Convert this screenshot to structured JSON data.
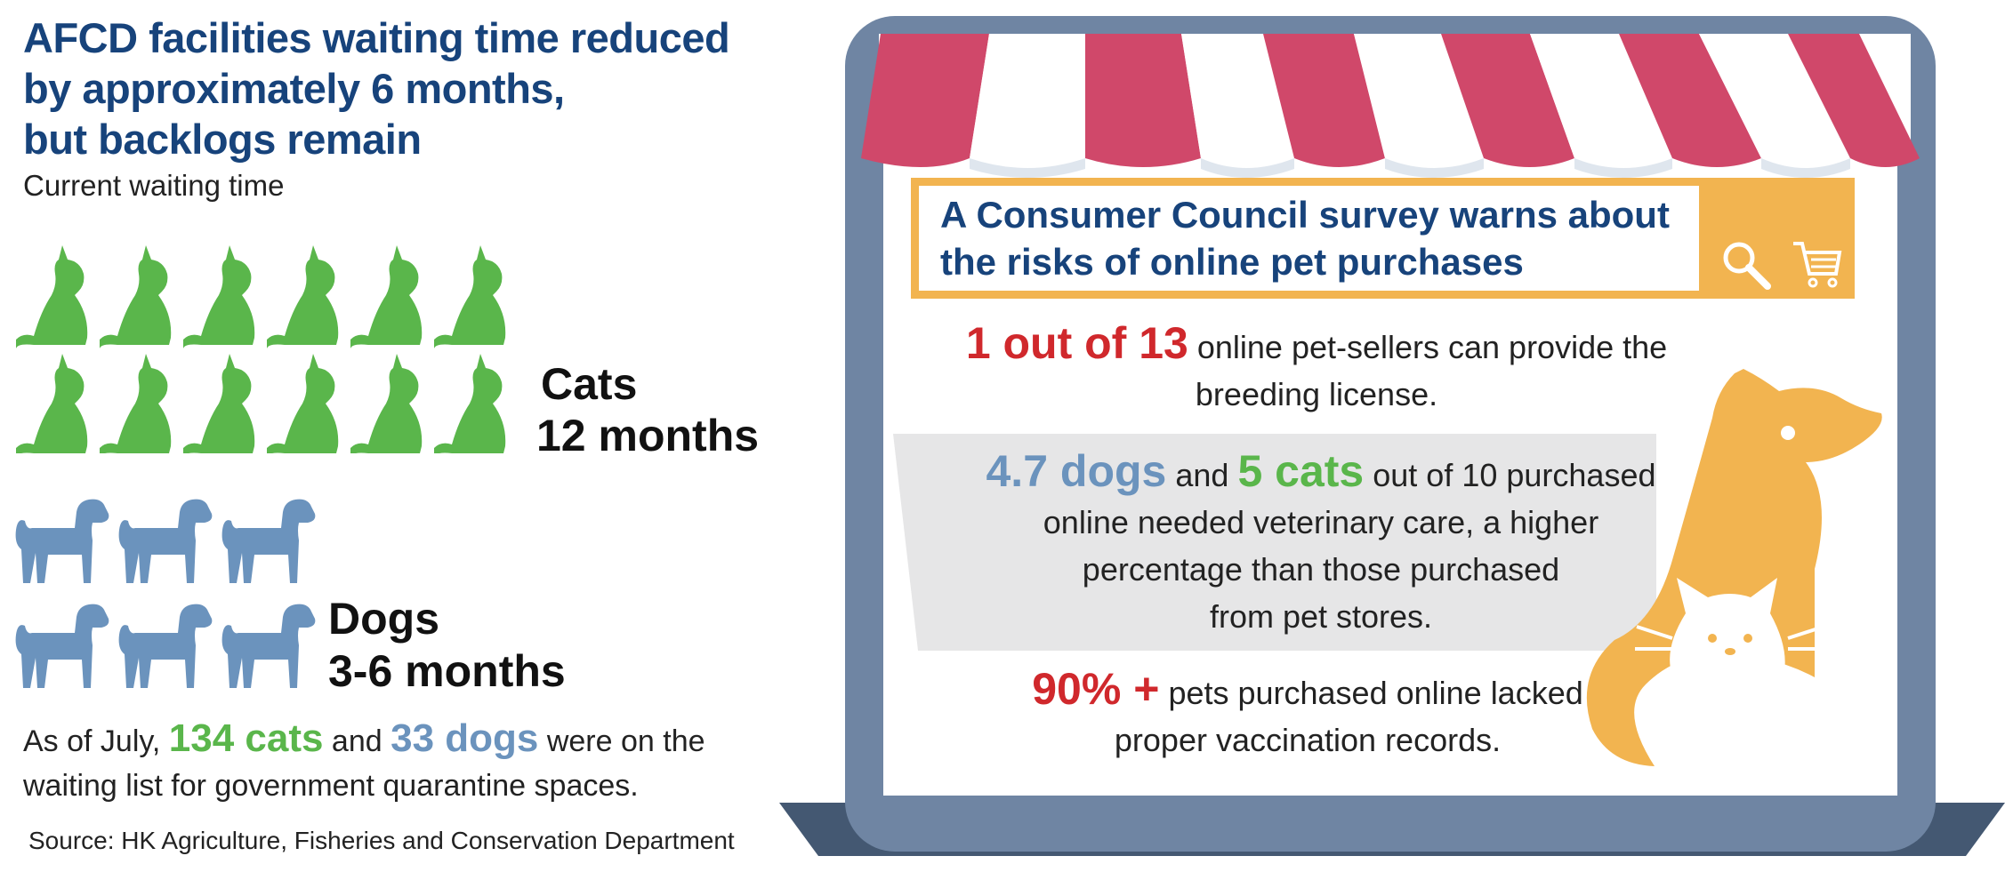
{
  "header": {
    "title_line1": "AFCD facilities waiting time reduced",
    "title_line2": "by approximately 6 months,",
    "title_line3": "but backlogs remain",
    "subtitle": "Current waiting time"
  },
  "cats": {
    "label": "Cats",
    "duration": "12 months",
    "icon": "cat-silhouette-icon",
    "icon_count": 12,
    "color": "#5ab64b"
  },
  "dogs": {
    "label": "Dogs",
    "duration": "3-6 months",
    "icon": "dog-silhouette-icon",
    "icon_count": 6,
    "color": "#6b93bd"
  },
  "waitlist": {
    "prefix": "As of July,",
    "cats_count": "134 cats",
    "connector": "and",
    "dogs_count": "33 dogs",
    "suffix_line1": "were on the",
    "suffix_line2": "waiting list for government quarantine spaces."
  },
  "source": "Source: HK Agriculture, Fisheries and Conservation Department",
  "survey": {
    "title_line1": "A Consumer Council survey warns about",
    "title_line2": "the risks of online pet purchases",
    "icons": [
      "magnifying-glass-icon",
      "shopping-cart-icon"
    ]
  },
  "facts": {
    "fact1_highlight": "1 out of 13",
    "fact1_line1": "online pet-sellers can provide the",
    "fact1_line2": "breeding license.",
    "fact2_dogs": "4.7 dogs",
    "fact2_and": "and",
    "fact2_cats": "5 cats",
    "fact2_line1": "out of 10 purchased",
    "fact2_line2": "online needed veterinary care, a higher",
    "fact2_line3": "percentage than those purchased",
    "fact2_line4": "from pet stores.",
    "fact3_highlight": "90% +",
    "fact3_line1": "pets purchased online lacked",
    "fact3_line2": "proper vaccination records."
  },
  "colors": {
    "title_blue": "#17437b",
    "awning_red": "#d0486a",
    "frame_slate": "#6f85a3",
    "accent_orange": "#f2b450",
    "highlight_red": "#d0282c"
  }
}
